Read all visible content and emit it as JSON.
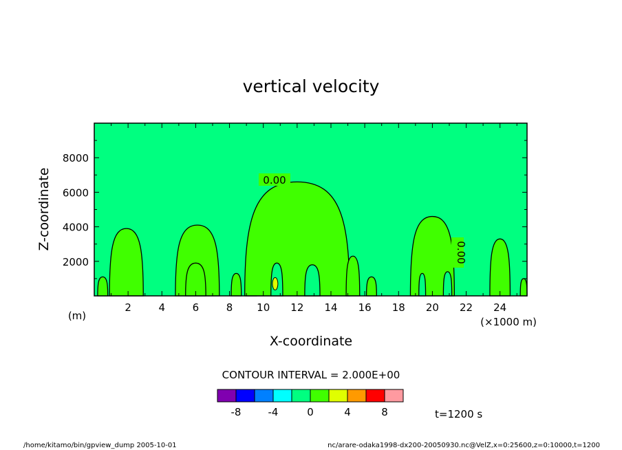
{
  "chart_data": {
    "type": "contour",
    "title": "vertical velocity",
    "xlabel": "X-coordinate",
    "ylabel": "Z-coordinate",
    "x_unit_label": "(×1000 m)",
    "y_unit_label": "(m)",
    "xlim": [
      0,
      25.6
    ],
    "ylim": [
      0,
      10000
    ],
    "x_ticks": [
      2,
      4,
      6,
      8,
      10,
      12,
      14,
      16,
      18,
      20,
      22,
      24
    ],
    "x_tick_labels": [
      "2",
      "4",
      "6",
      "8",
      "10",
      "12",
      "14",
      "16",
      "18",
      "20",
      "22",
      "24"
    ],
    "y_ticks": [
      2000,
      4000,
      6000,
      8000
    ],
    "y_tick_labels": [
      "2000",
      "4000",
      "6000",
      "8000"
    ],
    "contour_labels": [
      "0.00",
      "0.00"
    ],
    "contour_interval_text": "CONTOUR INTERVAL = 2.000E+00",
    "colorbar": {
      "levels": [
        -10,
        -8,
        -6,
        -4,
        -2,
        0,
        2,
        4,
        6,
        8,
        10
      ],
      "colors": [
        "#8000b0",
        "#0000ff",
        "#0080ff",
        "#00ffff",
        "#00ff80",
        "#40ff00",
        "#e0ff00",
        "#ff9a00",
        "#ff0000",
        "#ff9aa0"
      ],
      "tick_labels": [
        "-8",
        "-4",
        "0",
        "4",
        "8"
      ],
      "tick_values": [
        -8,
        -4,
        0,
        4,
        8
      ]
    },
    "background_color": "#00ff80",
    "positive_region_color": "#40ff00",
    "maximum_region_color": "#e0ff00",
    "updraft_regions": [
      {
        "x_center": 0.5,
        "x_halfwidth": 0.3,
        "top": 1100
      },
      {
        "x_center": 1.9,
        "x_halfwidth": 1.0,
        "top": 3900
      },
      {
        "x_center": 6.1,
        "x_halfwidth": 1.3,
        "top": 4100
      },
      {
        "x_center": 6.0,
        "x_halfwidth": 0.6,
        "top": 1900
      },
      {
        "x_center": 8.4,
        "x_halfwidth": 0.3,
        "top": 1300
      },
      {
        "x_center": 9.3,
        "x_halfwidth": 0.3,
        "top": 1000
      },
      {
        "x_center": 12.0,
        "x_halfwidth": 3.1,
        "top": 6600
      },
      {
        "x_center": 15.3,
        "x_halfwidth": 0.4,
        "top": 2300
      },
      {
        "x_center": 16.4,
        "x_halfwidth": 0.3,
        "top": 1100
      },
      {
        "x_center": 20.0,
        "x_halfwidth": 1.3,
        "top": 4600
      },
      {
        "x_center": 24.0,
        "x_halfwidth": 0.6,
        "top": 3300
      },
      {
        "x_center": 25.4,
        "x_halfwidth": 0.2,
        "top": 1000
      }
    ],
    "downdraft_gaps": [
      {
        "x_center": 10.8,
        "x_halfwidth": 0.35,
        "top": 1900
      },
      {
        "x_center": 12.9,
        "x_halfwidth": 0.45,
        "top": 1800
      },
      {
        "x_center": 19.4,
        "x_halfwidth": 0.2,
        "top": 1300
      },
      {
        "x_center": 20.9,
        "x_halfwidth": 0.25,
        "top": 1400
      }
    ],
    "maximum_cells": [
      {
        "x": 10.7,
        "z": 700
      }
    ]
  },
  "annotations": {
    "time_label": "t=1200 s",
    "footer_left": "/home/kitamo/bin/gpview_dump   2005-10-01",
    "footer_right": "nc/arare-odaka1998-dx200-20050930.nc@VelZ,x=0:25600,z=0:10000,t=1200"
  }
}
